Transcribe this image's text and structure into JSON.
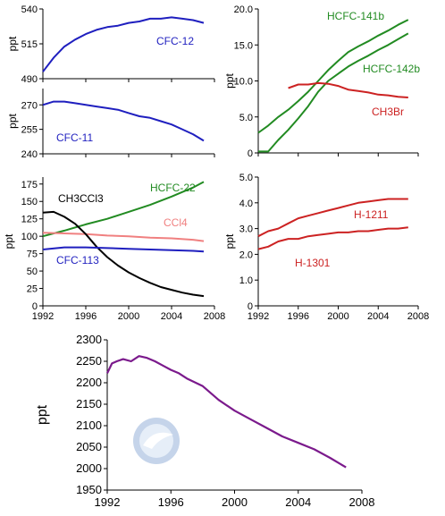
{
  "chart_data": [
    {
      "type": "line",
      "name": "cfc12",
      "ylabel": "ppt",
      "xlim": [
        1992,
        2008
      ],
      "ylim": [
        490,
        540
      ],
      "yticks": [
        "490",
        "515",
        "540"
      ],
      "xticks": [],
      "series": [
        {
          "name": "CFC-12",
          "color": "#1f1fbf",
          "x": [
            1992,
            1993,
            1994,
            1995,
            1996,
            1997,
            1998,
            1999,
            2000,
            2001,
            2002,
            2003,
            2004,
            2005,
            2006,
            2007
          ],
          "y": [
            495,
            505,
            513,
            518,
            522,
            525,
            527,
            528,
            530,
            531,
            533,
            533,
            534,
            533,
            532,
            530
          ]
        }
      ]
    },
    {
      "type": "line",
      "name": "cfc11",
      "ylabel": "ppt",
      "xlim": [
        1992,
        2008
      ],
      "ylim": [
        240,
        280
      ],
      "yticks": [
        "240",
        "255",
        "270"
      ],
      "xticks": [],
      "series": [
        {
          "name": "CFC-11",
          "color": "#1f1fbf",
          "x": [
            1992,
            1993,
            1994,
            1995,
            1996,
            1997,
            1998,
            1999,
            2000,
            2001,
            2002,
            2003,
            2004,
            2005,
            2006,
            2007
          ],
          "y": [
            270,
            272,
            272,
            271,
            270,
            269,
            268,
            267,
            265,
            263,
            262,
            260,
            258,
            255,
            252,
            248
          ]
        }
      ]
    },
    {
      "type": "line",
      "name": "mixed",
      "ylabel": "ppt",
      "xlim": [
        1992,
        2008
      ],
      "ylim": [
        0,
        185
      ],
      "yticks": [
        "0",
        "25",
        "50",
        "75",
        "100",
        "125",
        "150",
        "175"
      ],
      "xticks": [
        "1992",
        "1996",
        "2000",
        "2004",
        "2008"
      ],
      "series": [
        {
          "name": "HCFC-22",
          "color": "#228b22",
          "x": [
            1992,
            1994,
            1996,
            1998,
            2000,
            2002,
            2004,
            2006,
            2007
          ],
          "y": [
            100,
            108,
            117,
            125,
            135,
            145,
            157,
            170,
            178
          ]
        },
        {
          "name": "CCl4",
          "color": "#f08080",
          "x": [
            1992,
            1994,
            1996,
            1998,
            2000,
            2002,
            2004,
            2006,
            2007
          ],
          "y": [
            105,
            104,
            103,
            101,
            100,
            98,
            97,
            95,
            93
          ]
        },
        {
          "name": "CH3CCl3",
          "color": "#000000",
          "x": [
            1992,
            1993,
            1994,
            1995,
            1996,
            1997,
            1998,
            1999,
            2000,
            2001,
            2002,
            2003,
            2004,
            2005,
            2006,
            2007
          ],
          "y": [
            134,
            135,
            128,
            118,
            103,
            85,
            70,
            58,
            48,
            40,
            33,
            27,
            23,
            19,
            16,
            14
          ]
        },
        {
          "name": "CFC-113",
          "color": "#1f1fbf",
          "x": [
            1992,
            1994,
            1996,
            1998,
            2000,
            2002,
            2004,
            2006,
            2007
          ],
          "y": [
            81,
            84,
            84,
            83,
            82,
            81,
            80,
            79,
            78
          ]
        }
      ]
    },
    {
      "type": "line",
      "name": "hcfc",
      "ylabel": "ppt",
      "xlim": [
        1992,
        2008
      ],
      "ylim": [
        0,
        20
      ],
      "yticks": [
        "0",
        "5.0",
        "10.0",
        "15.0",
        "20.0"
      ],
      "xticks": [],
      "series": [
        {
          "name": "HCFC-141b",
          "color": "#228b22",
          "x": [
            1992,
            1993,
            1994,
            1995,
            1996,
            1997,
            1998,
            1999,
            2000,
            2001,
            2002,
            2003,
            2004,
            2005,
            2006,
            2007
          ],
          "y": [
            2.8,
            3.8,
            5.0,
            6.0,
            7.2,
            8.5,
            10.0,
            11.5,
            12.8,
            14.0,
            14.8,
            15.5,
            16.3,
            17.0,
            17.8,
            18.5
          ]
        },
        {
          "name": "HCFC-142b",
          "color": "#228b22",
          "x": [
            1992,
            1993,
            1994,
            1995,
            1996,
            1997,
            1998,
            1999,
            2000,
            2001,
            2002,
            2003,
            2004,
            2005,
            2006,
            2007
          ],
          "y": [
            0.2,
            0.2,
            1.8,
            3.2,
            4.8,
            6.5,
            8.5,
            10.0,
            11.0,
            12.0,
            12.8,
            13.5,
            14.3,
            15.0,
            15.8,
            16.6
          ]
        },
        {
          "name": "CH3Br",
          "color": "#cc2222",
          "x": [
            1995,
            1996,
            1997,
            1998,
            1999,
            2000,
            2001,
            2002,
            2003,
            2004,
            2005,
            2006,
            2007
          ],
          "y": [
            9.0,
            9.5,
            9.5,
            9.7,
            9.6,
            9.3,
            8.8,
            8.6,
            8.4,
            8.1,
            8.0,
            7.8,
            7.7
          ]
        }
      ]
    },
    {
      "type": "line",
      "name": "halons",
      "ylabel": "ppt",
      "xlim": [
        1992,
        2008
      ],
      "ylim": [
        0,
        5
      ],
      "yticks": [
        "0",
        "1.0",
        "2.0",
        "3.0",
        "4.0",
        "5.0"
      ],
      "xticks": [
        "1992",
        "1996",
        "2000",
        "2004",
        "2008"
      ],
      "series": [
        {
          "name": "H-1211",
          "color": "#cc2222",
          "x": [
            1992,
            1993,
            1994,
            1995,
            1996,
            1997,
            1998,
            1999,
            2000,
            2001,
            2002,
            2003,
            2004,
            2005,
            2006,
            2007
          ],
          "y": [
            2.7,
            2.9,
            3.0,
            3.2,
            3.4,
            3.5,
            3.6,
            3.7,
            3.8,
            3.9,
            4.0,
            4.05,
            4.1,
            4.15,
            4.15,
            4.15
          ]
        },
        {
          "name": "H-1301",
          "color": "#cc2222",
          "x": [
            1992,
            1993,
            1994,
            1995,
            1996,
            1997,
            1998,
            1999,
            2000,
            2001,
            2002,
            2003,
            2004,
            2005,
            2006,
            2007
          ],
          "y": [
            2.2,
            2.3,
            2.5,
            2.6,
            2.6,
            2.7,
            2.75,
            2.8,
            2.85,
            2.85,
            2.9,
            2.9,
            2.95,
            3.0,
            3.0,
            3.05
          ]
        }
      ]
    },
    {
      "type": "line",
      "name": "total",
      "ylabel": "ppt",
      "xlim": [
        1992,
        2008
      ],
      "ylim": [
        1950,
        2300
      ],
      "yticks": [
        "1950",
        "2000",
        "2050",
        "2100",
        "2150",
        "2200",
        "2250",
        "2300"
      ],
      "xticks": [
        "1992",
        "1996",
        "2000",
        "2004",
        "2008"
      ],
      "series": [
        {
          "name": "",
          "color": "#7b1a8c",
          "x": [
            1992,
            1992.3,
            1992.6,
            1993,
            1993.5,
            1994,
            1994.5,
            1995,
            1995.5,
            1996,
            1996.5,
            1997,
            1998,
            1999,
            2000,
            2001,
            2002,
            2003,
            2004,
            2005,
            2006,
            2007
          ],
          "y": [
            2222,
            2245,
            2250,
            2255,
            2250,
            2262,
            2258,
            2250,
            2240,
            2230,
            2222,
            2210,
            2192,
            2160,
            2135,
            2115,
            2095,
            2075,
            2060,
            2045,
            2025,
            2003
          ]
        }
      ]
    }
  ],
  "labels": {
    "cfc12": "CFC-12",
    "cfc11": "CFC-11",
    "ch3ccl3": "CH3CCl3",
    "hcfc22": "HCFC-22",
    "ccl4": "CCl4",
    "cfc113": "CFC-113",
    "hcfc141b": "HCFC-141b",
    "hcfc142b": "HCFC-142b",
    "ch3br": "CH3Br",
    "h1211": "H-1211",
    "h1301": "H-1301"
  },
  "logo": {
    "text": "NOAA",
    "colors": {
      "outer": "#c5d4ea",
      "inner": "#e6eef8",
      "bird": "#ffffff"
    }
  }
}
